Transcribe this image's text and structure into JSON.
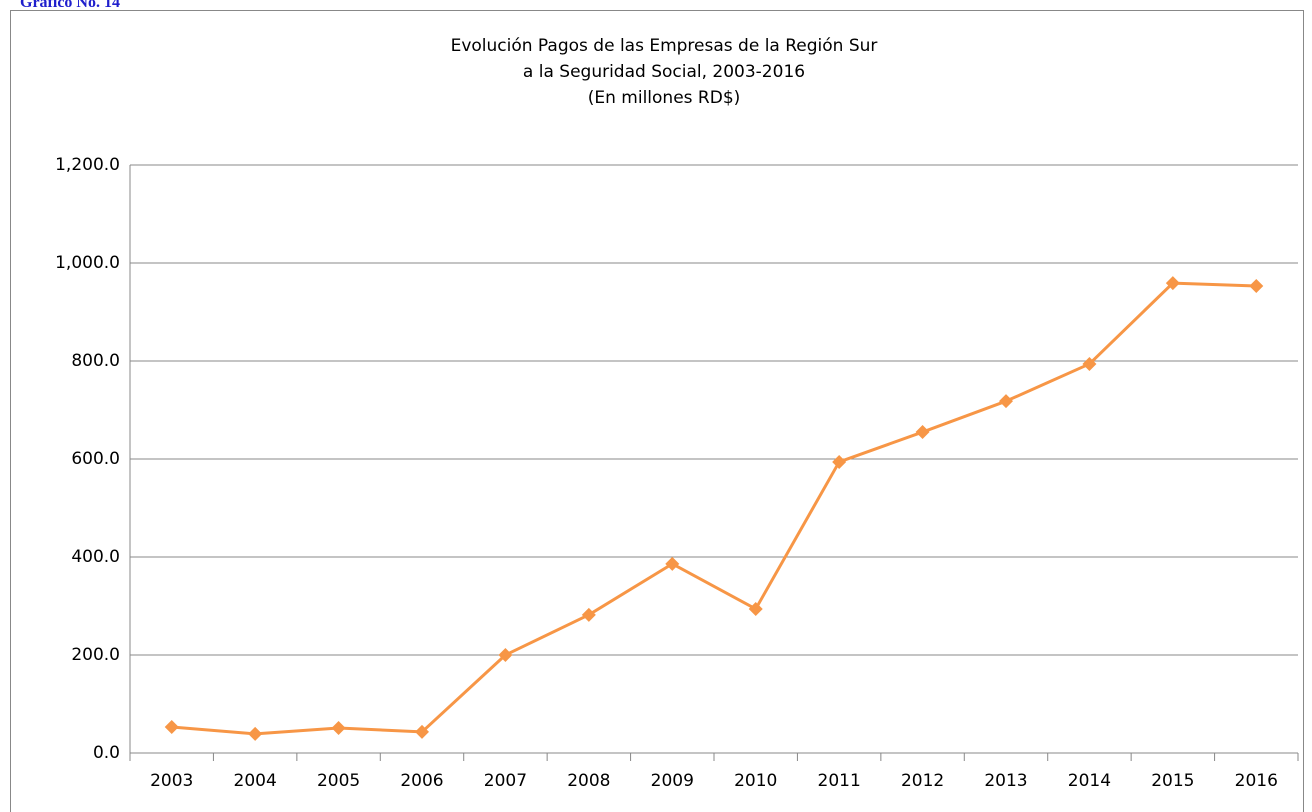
{
  "label": "Gráfico No. 14",
  "chart_data": {
    "type": "line",
    "title": [
      "Evolución Pagos de las Empresas de la Región Sur",
      "a la Seguridad Social, 2003-2016",
      "(En millones RD$)"
    ],
    "categories": [
      "2003",
      "2004",
      "2005",
      "2006",
      "2007",
      "2008",
      "2009",
      "2010",
      "2011",
      "2012",
      "2013",
      "2014",
      "2015",
      "2016"
    ],
    "series": [
      {
        "color": "#f79646",
        "values": [
          53,
          39,
          51,
          43,
          200,
          282,
          386,
          294,
          594,
          655,
          718,
          794,
          959,
          953
        ]
      }
    ],
    "ylim": [
      0,
      1200
    ],
    "yticks": [
      {
        "value": 0,
        "label": "0.0"
      },
      {
        "value": 200,
        "label": "200.0"
      },
      {
        "value": 400,
        "label": "400.0"
      },
      {
        "value": 600,
        "label": "600.0"
      },
      {
        "value": 800,
        "label": "800.0"
      },
      {
        "value": 1000,
        "label": "1,000.0"
      },
      {
        "value": 1200,
        "label": "1,200.0"
      }
    ],
    "grid": true
  }
}
